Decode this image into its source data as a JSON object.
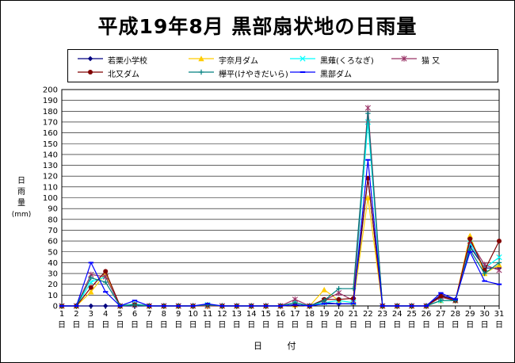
{
  "chart_data": {
    "type": "line",
    "title": "平成19年8月 黒部扇状地の日雨量",
    "ylabel": "日雨量(mm)",
    "ylabel_chars": [
      "日",
      "雨",
      "量"
    ],
    "ylabel_unit": "(mm)",
    "xlabel": "日 付",
    "ylim": [
      0,
      200
    ],
    "ytick_step": 10,
    "grid": true,
    "legend_position": "top",
    "x_suffix": "日",
    "x": [
      1,
      2,
      3,
      4,
      5,
      6,
      7,
      8,
      9,
      10,
      11,
      12,
      13,
      14,
      15,
      16,
      17,
      18,
      19,
      20,
      21,
      22,
      23,
      24,
      25,
      26,
      27,
      28,
      29,
      30,
      31
    ],
    "series": [
      {
        "name": "若栗小学校",
        "color": "#000080",
        "marker": "diamond",
        "values": [
          0,
          0,
          0,
          0,
          0,
          0,
          0,
          0,
          0,
          0,
          1,
          0,
          0,
          0,
          0,
          0,
          1,
          0,
          3,
          2,
          2,
          118,
          0,
          0,
          0,
          0,
          10,
          6,
          55,
          35,
          35
        ]
      },
      {
        "name": "宇奈月ダム",
        "color": "#ffcc00",
        "marker": "triangle",
        "values": [
          0,
          0,
          13,
          30,
          0,
          2,
          0,
          0,
          0,
          0,
          0,
          0,
          0,
          0,
          0,
          0,
          1,
          0,
          15,
          5,
          3,
          100,
          0,
          0,
          0,
          0,
          5,
          5,
          65,
          30,
          38
        ]
      },
      {
        "name": "黒薙(くろなぎ)",
        "color": "#00ffff",
        "marker": "x",
        "values": [
          0,
          0,
          22,
          27,
          0,
          2,
          0,
          0,
          0,
          0,
          1,
          0,
          0,
          0,
          0,
          0,
          3,
          0,
          3,
          5,
          3,
          170,
          0,
          0,
          0,
          0,
          5,
          5,
          58,
          35,
          45
        ]
      },
      {
        "name": "猫 又",
        "color": "#993366",
        "marker": "star",
        "values": [
          0,
          0,
          29,
          27,
          0,
          1,
          0,
          0,
          0,
          0,
          0,
          0,
          0,
          0,
          0,
          0,
          6,
          0,
          5,
          12,
          5,
          183,
          0,
          0,
          0,
          0,
          8,
          5,
          60,
          38,
          33
        ]
      },
      {
        "name": "北又ダム",
        "color": "#800000",
        "marker": "circle",
        "values": [
          0,
          0,
          17,
          32,
          0,
          1,
          0,
          0,
          0,
          0,
          1,
          0,
          0,
          0,
          0,
          0,
          1,
          0,
          6,
          6,
          7,
          118,
          0,
          0,
          0,
          0,
          9,
          5,
          62,
          33,
          60
        ]
      },
      {
        "name": "欅平(けやきだいら)",
        "color": "#008080",
        "marker": "plus",
        "values": [
          0,
          0,
          26,
          22,
          0,
          1,
          0,
          0,
          0,
          0,
          1,
          0,
          0,
          0,
          0,
          0,
          3,
          0,
          5,
          16,
          16,
          178,
          0,
          0,
          0,
          0,
          5,
          5,
          52,
          30,
          40
        ]
      },
      {
        "name": "黒部ダム",
        "color": "#0000ff",
        "marker": "dash",
        "values": [
          0,
          0,
          40,
          13,
          0,
          5,
          0,
          0,
          0,
          0,
          2,
          0,
          0,
          0,
          0,
          0,
          1,
          0,
          2,
          2,
          2,
          135,
          0,
          0,
          0,
          0,
          12,
          6,
          50,
          23,
          20
        ]
      }
    ]
  }
}
